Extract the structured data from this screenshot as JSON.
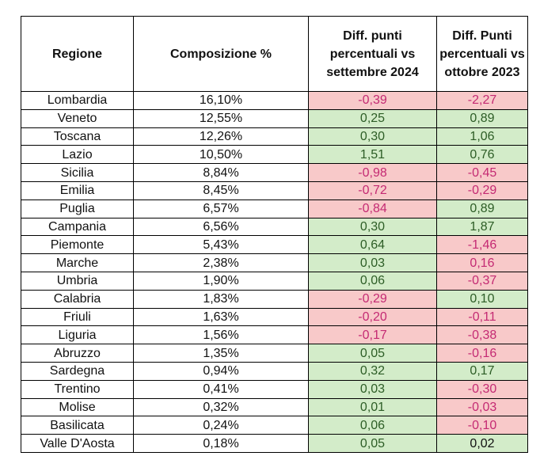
{
  "headers": {
    "regione": "Regione",
    "composizione": "Composizione %",
    "diff_settembre": "Diff. punti percentuali vs settembre 2024",
    "diff_ottobre": "Diff. Punti percentuali vs ottobre 2023"
  },
  "colors": {
    "negative_bg": "#f8c9c9",
    "negative_text": "#c42a73",
    "positive_bg": "#d3ecc9",
    "positive_text": "#2d5d26"
  },
  "rows": [
    {
      "regione": "Lombardia",
      "composizione": "16,10%",
      "diff_settembre": "-0,39",
      "diff_ottobre": "-2,27"
    },
    {
      "regione": "Veneto",
      "composizione": "12,55%",
      "diff_settembre": "0,25",
      "diff_ottobre": "0,89"
    },
    {
      "regione": "Toscana",
      "composizione": "12,26%",
      "diff_settembre": "0,30",
      "diff_ottobre": "1,06"
    },
    {
      "regione": "Lazio",
      "composizione": "10,50%",
      "diff_settembre": "1,51",
      "diff_ottobre": "0,76"
    },
    {
      "regione": "Sicilia",
      "composizione": "8,84%",
      "diff_settembre": "-0,98",
      "diff_ottobre": "-0,45"
    },
    {
      "regione": "Emilia",
      "composizione": "8,45%",
      "diff_settembre": "-0,72",
      "diff_ottobre": "-0,29"
    },
    {
      "regione": "Puglia",
      "composizione": "6,57%",
      "diff_settembre": "-0,84",
      "diff_ottobre": "0,89"
    },
    {
      "regione": "Campania",
      "composizione": "6,56%",
      "diff_settembre": "0,30",
      "diff_ottobre": "1,87"
    },
    {
      "regione": "Piemonte",
      "composizione": "5,43%",
      "diff_settembre": "0,64",
      "diff_ottobre": "-1,46"
    },
    {
      "regione": "Marche",
      "composizione": "2,38%",
      "diff_settembre": "0,03",
      "diff_ottobre": "0,16"
    },
    {
      "regione": "Umbria",
      "composizione": "1,90%",
      "diff_settembre": "0,06",
      "diff_ottobre": "-0,37"
    },
    {
      "regione": "Calabria",
      "composizione": "1,83%",
      "diff_settembre": "-0,29",
      "diff_ottobre": "0,10"
    },
    {
      "regione": "Friuli",
      "composizione": "1,63%",
      "diff_settembre": "-0,20",
      "diff_ottobre": "-0,11"
    },
    {
      "regione": "Liguria",
      "composizione": "1,56%",
      "diff_settembre": "-0,17",
      "diff_ottobre": "-0,38"
    },
    {
      "regione": "Abruzzo",
      "composizione": "1,35%",
      "diff_settembre": "0,05",
      "diff_ottobre": "-0,16"
    },
    {
      "regione": "Sardegna",
      "composizione": "0,94%",
      "diff_settembre": "0,32",
      "diff_ottobre": "0,17"
    },
    {
      "regione": "Trentino",
      "composizione": "0,41%",
      "diff_settembre": "0,03",
      "diff_ottobre": "-0,30"
    },
    {
      "regione": "Molise",
      "composizione": "0,32%",
      "diff_settembre": "0,01",
      "diff_ottobre": "-0,03"
    },
    {
      "regione": "Basilicata",
      "composizione": "0,24%",
      "diff_settembre": "0,06",
      "diff_ottobre": "-0,10"
    },
    {
      "regione": "Valle D'Aosta",
      "composizione": "0,18%",
      "diff_settembre": "0,05",
      "diff_ottobre": "0,02"
    }
  ]
}
